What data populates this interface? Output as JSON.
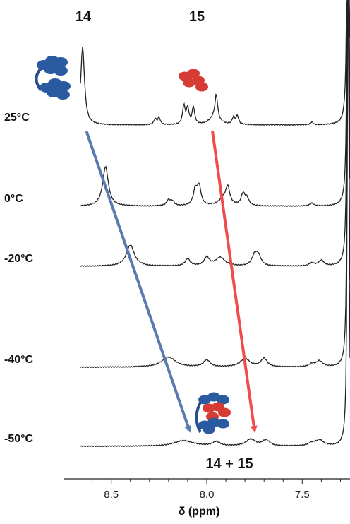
{
  "chart_data": {
    "type": "line",
    "title": "",
    "xlabel": "δ (ppm)",
    "ylabel": "",
    "x_reversed": true,
    "xlim": [
      8.75,
      7.25
    ],
    "xticks": [
      8.5,
      8.0,
      7.5
    ],
    "xtick_labels": [
      "8.5",
      "8.0",
      "7.5"
    ],
    "grid": false,
    "compound_labels": {
      "left": "14",
      "right": "15",
      "bottom": "14 + 15"
    },
    "series": [
      {
        "name": "25°C",
        "peak_14_ppm": 8.65,
        "peak_15_ppm": 7.96,
        "minor_peaks_ppm": [
          8.27,
          8.25,
          8.12,
          8.1,
          8.07,
          7.95,
          7.86,
          7.84,
          7.45
        ]
      },
      {
        "name": "0°C",
        "peak_14_ppm": 8.53,
        "peak_15_ppm": 7.91,
        "minor_peaks_ppm": [
          8.2,
          8.18,
          8.06,
          8.04,
          7.89,
          7.81,
          7.79,
          7.45
        ]
      },
      {
        "name": "-20°C",
        "peak_14_ppm": 8.4,
        "peak_15_ppm": 7.93,
        "minor_peaks_ppm": [
          8.1,
          8.0,
          7.75,
          7.73,
          7.45,
          7.4
        ]
      },
      {
        "name": "-40°C",
        "peak_14_ppm": 8.2,
        "peak_15_ppm": 7.8,
        "minor_peaks_ppm": [
          8.0,
          7.7,
          7.45,
          7.41
        ]
      },
      {
        "name": "-50°C",
        "peak_14_ppm": 8.12,
        "peak_15_ppm": 7.77,
        "minor_peaks_ppm": [
          7.95,
          7.69,
          7.45,
          7.41
        ]
      }
    ],
    "solvent_peak_ppm": 7.26,
    "trend_arrows": [
      {
        "name": "14 shift",
        "color": "#5a7bb0",
        "from_ppm": 8.63,
        "to_ppm": 8.09
      },
      {
        "name": "15 shift",
        "color": "#f24b4b",
        "from_ppm": 7.97,
        "to_ppm": 7.75
      }
    ],
    "colors": {
      "blue_cluster": "#2a5aa0",
      "red_cluster": "#d63b34",
      "trace": "#222222"
    }
  }
}
